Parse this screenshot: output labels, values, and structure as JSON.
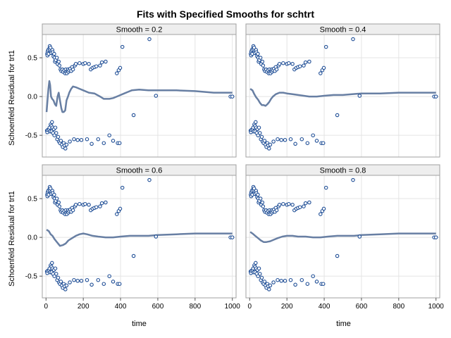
{
  "chart_data": {
    "type": "scatter",
    "title": "Fits with Specified Smooths for schtrt",
    "xlabel": "time",
    "ylabel": "Schoenfeld Residual for trt1",
    "xlim": [
      -20,
      1020
    ],
    "ylim": [
      -0.78,
      0.8
    ],
    "xticks": [
      0,
      200,
      400,
      600,
      800,
      1000
    ],
    "yticks": [
      -0.5,
      0.0,
      0.5
    ],
    "xtick_labels": [
      "0",
      "200",
      "400",
      "600",
      "800",
      "1000"
    ],
    "ytick_labels": [
      "-0.5",
      "0.0",
      "0.5"
    ],
    "grid": true,
    "layout": "2x2 panels",
    "colors": {
      "marker": "#1f4e96",
      "line": "#687fa3"
    },
    "panels": [
      {
        "label": "Smooth = 0.2",
        "smooth_line": [
          [
            3,
            -0.2
          ],
          [
            8,
            -0.05
          ],
          [
            13,
            0.1
          ],
          [
            18,
            0.2
          ],
          [
            22,
            0.15
          ],
          [
            27,
            0.0
          ],
          [
            33,
            -0.03
          ],
          [
            40,
            -0.05
          ],
          [
            48,
            -0.1
          ],
          [
            55,
            -0.12
          ],
          [
            62,
            0.0
          ],
          [
            68,
            0.05
          ],
          [
            75,
            -0.05
          ],
          [
            82,
            -0.15
          ],
          [
            88,
            -0.2
          ],
          [
            95,
            -0.2
          ],
          [
            103,
            -0.18
          ],
          [
            110,
            -0.05
          ],
          [
            118,
            0.0
          ],
          [
            125,
            0.05
          ],
          [
            135,
            0.1
          ],
          [
            145,
            0.13
          ],
          [
            160,
            0.12
          ],
          [
            180,
            0.1
          ],
          [
            200,
            0.08
          ],
          [
            230,
            0.05
          ],
          [
            260,
            0.04
          ],
          [
            290,
            0.0
          ],
          [
            310,
            -0.03
          ],
          [
            340,
            -0.03
          ],
          [
            360,
            -0.02
          ],
          [
            380,
            0.0
          ],
          [
            400,
            0.02
          ],
          [
            420,
            0.04
          ],
          [
            440,
            0.06
          ],
          [
            460,
            0.08
          ],
          [
            500,
            0.09
          ],
          [
            550,
            0.08
          ],
          [
            600,
            0.08
          ],
          [
            700,
            0.08
          ],
          [
            800,
            0.07
          ],
          [
            850,
            0.06
          ],
          [
            900,
            0.05
          ],
          [
            1000,
            0.05
          ]
        ]
      },
      {
        "label": "Smooth = 0.4",
        "smooth_line": [
          [
            3,
            0.1
          ],
          [
            15,
            0.08
          ],
          [
            25,
            0.03
          ],
          [
            35,
            -0.01
          ],
          [
            45,
            -0.04
          ],
          [
            55,
            -0.08
          ],
          [
            65,
            -0.11
          ],
          [
            75,
            -0.11
          ],
          [
            85,
            -0.12
          ],
          [
            95,
            -0.1
          ],
          [
            105,
            -0.07
          ],
          [
            115,
            -0.03
          ],
          [
            125,
            0.0
          ],
          [
            140,
            0.03
          ],
          [
            160,
            0.05
          ],
          [
            180,
            0.05
          ],
          [
            200,
            0.04
          ],
          [
            230,
            0.03
          ],
          [
            260,
            0.02
          ],
          [
            290,
            0.01
          ],
          [
            320,
            0.0
          ],
          [
            360,
            0.0
          ],
          [
            400,
            0.01
          ],
          [
            450,
            0.02
          ],
          [
            500,
            0.02
          ],
          [
            550,
            0.03
          ],
          [
            600,
            0.04
          ],
          [
            700,
            0.04
          ],
          [
            800,
            0.05
          ],
          [
            900,
            0.05
          ],
          [
            1000,
            0.05
          ]
        ]
      },
      {
        "label": "Smooth = 0.6",
        "smooth_line": [
          [
            3,
            0.1
          ],
          [
            15,
            0.08
          ],
          [
            25,
            0.04
          ],
          [
            35,
            0.02
          ],
          [
            45,
            -0.02
          ],
          [
            55,
            -0.05
          ],
          [
            65,
            -0.08
          ],
          [
            75,
            -0.11
          ],
          [
            90,
            -0.1
          ],
          [
            105,
            -0.08
          ],
          [
            120,
            -0.04
          ],
          [
            140,
            -0.01
          ],
          [
            160,
            0.02
          ],
          [
            180,
            0.04
          ],
          [
            200,
            0.05
          ],
          [
            220,
            0.04
          ],
          [
            250,
            0.02
          ],
          [
            280,
            0.01
          ],
          [
            320,
            0.0
          ],
          [
            360,
            0.0
          ],
          [
            400,
            0.01
          ],
          [
            450,
            0.02
          ],
          [
            500,
            0.02
          ],
          [
            550,
            0.02
          ],
          [
            600,
            0.03
          ],
          [
            700,
            0.04
          ],
          [
            800,
            0.05
          ],
          [
            900,
            0.05
          ],
          [
            1000,
            0.05
          ]
        ]
      },
      {
        "label": "Smooth = 0.8",
        "smooth_line": [
          [
            3,
            0.07
          ],
          [
            15,
            0.05
          ],
          [
            30,
            0.02
          ],
          [
            45,
            -0.01
          ],
          [
            60,
            -0.04
          ],
          [
            75,
            -0.06
          ],
          [
            90,
            -0.06
          ],
          [
            110,
            -0.05
          ],
          [
            130,
            -0.03
          ],
          [
            150,
            -0.01
          ],
          [
            175,
            0.01
          ],
          [
            200,
            0.02
          ],
          [
            230,
            0.02
          ],
          [
            260,
            0.01
          ],
          [
            300,
            0.01
          ],
          [
            340,
            0.0
          ],
          [
            380,
            0.0
          ],
          [
            420,
            0.01
          ],
          [
            470,
            0.02
          ],
          [
            520,
            0.02
          ],
          [
            560,
            0.02
          ],
          [
            600,
            0.03
          ],
          [
            700,
            0.04
          ],
          [
            800,
            0.05
          ],
          [
            900,
            0.05
          ],
          [
            1000,
            0.05
          ]
        ]
      }
    ],
    "residual_points": [
      [
        5,
        -0.44
      ],
      [
        6,
        0.55
      ],
      [
        7,
        -0.46
      ],
      [
        8,
        0.53
      ],
      [
        9,
        0.58
      ],
      [
        10,
        -0.43
      ],
      [
        12,
        0.6
      ],
      [
        14,
        0.55
      ],
      [
        16,
        -0.42
      ],
      [
        18,
        0.62
      ],
      [
        19,
        -0.4
      ],
      [
        20,
        0.65
      ],
      [
        21,
        0.6
      ],
      [
        22,
        -0.45
      ],
      [
        24,
        0.63
      ],
      [
        25,
        -0.36
      ],
      [
        26,
        0.58
      ],
      [
        28,
        0.56
      ],
      [
        29,
        -0.38
      ],
      [
        30,
        -0.45
      ],
      [
        32,
        -0.33
      ],
      [
        34,
        0.6
      ],
      [
        35,
        -0.4
      ],
      [
        36,
        0.57
      ],
      [
        38,
        -0.47
      ],
      [
        40,
        0.52
      ],
      [
        42,
        -0.42
      ],
      [
        44,
        0.55
      ],
      [
        45,
        -0.5
      ],
      [
        46,
        0.5
      ],
      [
        48,
        0.45
      ],
      [
        50,
        -0.4
      ],
      [
        52,
        0.47
      ],
      [
        55,
        -0.47
      ],
      [
        58,
        0.5
      ],
      [
        60,
        -0.55
      ],
      [
        62,
        0.42
      ],
      [
        65,
        -0.52
      ],
      [
        68,
        0.45
      ],
      [
        70,
        -0.58
      ],
      [
        72,
        0.4
      ],
      [
        75,
        -0.6
      ],
      [
        78,
        0.35
      ],
      [
        80,
        -0.57
      ],
      [
        82,
        0.33
      ],
      [
        85,
        -0.62
      ],
      [
        88,
        0.35
      ],
      [
        90,
        -0.65
      ],
      [
        92,
        0.32
      ],
      [
        95,
        -0.6
      ],
      [
        98,
        0.34
      ],
      [
        100,
        -0.63
      ],
      [
        102,
        0.3
      ],
      [
        104,
        -0.67
      ],
      [
        106,
        0.35
      ],
      [
        108,
        0.32
      ],
      [
        110,
        -0.62
      ],
      [
        112,
        0.3
      ],
      [
        115,
        0.33
      ],
      [
        118,
        0.35
      ],
      [
        120,
        0.32
      ],
      [
        125,
        0.34
      ],
      [
        128,
        -0.58
      ],
      [
        130,
        0.36
      ],
      [
        135,
        0.33
      ],
      [
        140,
        0.38
      ],
      [
        145,
        0.35
      ],
      [
        150,
        -0.55
      ],
      [
        155,
        0.4
      ],
      [
        160,
        0.42
      ],
      [
        170,
        -0.56
      ],
      [
        180,
        0.43
      ],
      [
        190,
        -0.56
      ],
      [
        200,
        0.42
      ],
      [
        210,
        0.43
      ],
      [
        220,
        -0.55
      ],
      [
        230,
        0.42
      ],
      [
        240,
        0.35
      ],
      [
        245,
        -0.61
      ],
      [
        250,
        0.37
      ],
      [
        260,
        0.38
      ],
      [
        270,
        0.39
      ],
      [
        280,
        -0.55
      ],
      [
        290,
        0.4
      ],
      [
        300,
        0.44
      ],
      [
        310,
        -0.6
      ],
      [
        320,
        0.45
      ],
      [
        340,
        -0.5
      ],
      [
        360,
        -0.57
      ],
      [
        380,
        0.3
      ],
      [
        385,
        -0.6
      ],
      [
        390,
        0.34
      ],
      [
        395,
        -0.6
      ],
      [
        398,
        0.37
      ],
      [
        410,
        0.64
      ],
      [
        470,
        -0.24
      ],
      [
        555,
        0.74
      ],
      [
        590,
        0.01
      ],
      [
        990,
        0.0
      ],
      [
        1000,
        0.0
      ]
    ]
  }
}
